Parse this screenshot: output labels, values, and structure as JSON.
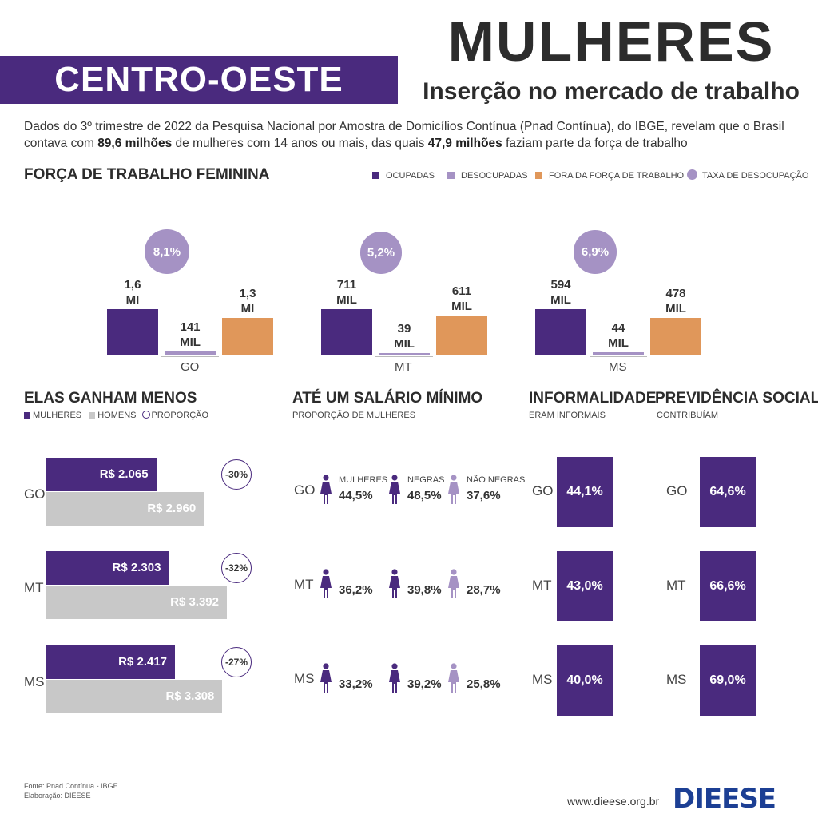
{
  "header": {
    "region": "CENTRO-OESTE",
    "title": "MULHERES",
    "subtitle": "Inserção no mercado de trabalho",
    "intro_part1": "Dados do 3º trimestre de 2022 da Pesquisa Nacional por Amostra de Domicílios Contínua (Pnad Contínua), do IBGE, revelam que o Brasil contava com ",
    "intro_bold1": "89,6 milhões",
    "intro_part2": " de mulheres com 14 anos ou mais, das quais ",
    "intro_bold2": "47,9 milhões",
    "intro_part3": " faziam parte da força de trabalho"
  },
  "colors": {
    "ocupadas": "#4a2a7e",
    "desocupadas": "#a592c4",
    "fora": "#e0975a",
    "taxa": "#a592c4",
    "homens": "#c8c8c8"
  },
  "labor_force": {
    "title": "FORÇA DE TRABALHO FEMININA",
    "legend": [
      "OCUPADAS",
      "DESOCUPADAS",
      "FORA DA FORÇA DE TRABALHO",
      "TAXA DE DESOCUPAÇÃO"
    ]
  },
  "salary": {
    "title": "ELAS GANHAM MENOS",
    "legend": [
      "MULHERES",
      "HOMENS",
      "PROPORÇÃO"
    ]
  },
  "minimum_wage": {
    "title": "ATÉ UM SALÁRIO MÍNIMO",
    "subtitle": "PROPORÇÃO DE MULHERES",
    "col_labels": [
      "MULHERES",
      "NEGRAS",
      "NÃO NEGRAS"
    ]
  },
  "informality": {
    "title": "INFORMALIDADE",
    "subtitle": "ERAM INFORMAIS"
  },
  "social_security": {
    "title": "PREVIDÊNCIA SOCIAL",
    "subtitle": "CONTRIBUÍAM"
  },
  "chart_data": [
    {
      "type": "bar",
      "title": "FORÇA DE TRABALHO FEMININA",
      "categories": [
        "GO",
        "MT",
        "MS"
      ],
      "series": [
        {
          "name": "OCUPADAS",
          "values": [
            1600000,
            711000,
            594000
          ],
          "labels": [
            "1,6\nMI",
            "711\nMIL",
            "594\nMIL"
          ]
        },
        {
          "name": "DESOCUPADAS",
          "values": [
            141000,
            39000,
            44000
          ],
          "labels": [
            "141\nMIL",
            "39\nMIL",
            "44\nMIL"
          ]
        },
        {
          "name": "FORA DA FORÇA DE TRABALHO",
          "values": [
            1300000,
            611000,
            478000
          ],
          "labels": [
            "1,3\nMI",
            "611\nMIL",
            "478\nMIL"
          ]
        },
        {
          "name": "TAXA DE DESOCUPAÇÃO",
          "values": [
            8.1,
            5.2,
            6.9
          ],
          "labels": [
            "8,1%",
            "5,2%",
            "6,9%"
          ]
        }
      ]
    },
    {
      "type": "bar",
      "title": "ELAS GANHAM MENOS",
      "categories": [
        "GO",
        "MT",
        "MS"
      ],
      "series": [
        {
          "name": "MULHERES",
          "values": [
            2065,
            2303,
            2417
          ],
          "labels": [
            "R$ 2.065",
            "R$ 2.303",
            "R$ 2.417"
          ]
        },
        {
          "name": "HOMENS",
          "values": [
            2960,
            3392,
            3308
          ],
          "labels": [
            "R$ 2.960",
            "R$ 3.392",
            "R$ 3.308"
          ]
        },
        {
          "name": "PROPORÇÃO",
          "values": [
            -30,
            -32,
            -27
          ],
          "labels": [
            "-30%",
            "-32%",
            "-27%"
          ]
        }
      ]
    },
    {
      "type": "table",
      "title": "ATÉ UM SALÁRIO MÍNIMO",
      "categories": [
        "GO",
        "MT",
        "MS"
      ],
      "series": [
        {
          "name": "MULHERES",
          "values": [
            44.5,
            36.2,
            33.2
          ],
          "labels": [
            "44,5%",
            "36,2%",
            "33,2%"
          ]
        },
        {
          "name": "NEGRAS",
          "values": [
            48.5,
            39.8,
            39.2
          ],
          "labels": [
            "48,5%",
            "39,8%",
            "39,2%"
          ]
        },
        {
          "name": "NÃO NEGRAS",
          "values": [
            37.6,
            28.7,
            25.8
          ],
          "labels": [
            "37,6%",
            "28,7%",
            "25,8%"
          ]
        }
      ]
    },
    {
      "type": "table",
      "title": "INFORMALIDADE",
      "categories": [
        "GO",
        "MT",
        "MS"
      ],
      "values": [
        44.1,
        43.0,
        40.0
      ],
      "labels": [
        "44,1%",
        "43,0%",
        "40,0%"
      ]
    },
    {
      "type": "table",
      "title": "PREVIDÊNCIA SOCIAL",
      "categories": [
        "GO",
        "MT",
        "MS"
      ],
      "values": [
        64.6,
        66.6,
        69.0
      ],
      "labels": [
        "64,6%",
        "66,6%",
        "69,0%"
      ]
    }
  ],
  "footer": {
    "source": "Fonte: Pnad Contínua - IBGE",
    "credit": "Elaboração: DIEESE",
    "site": "www.dieese.org.br",
    "logo": "DIEESE"
  }
}
